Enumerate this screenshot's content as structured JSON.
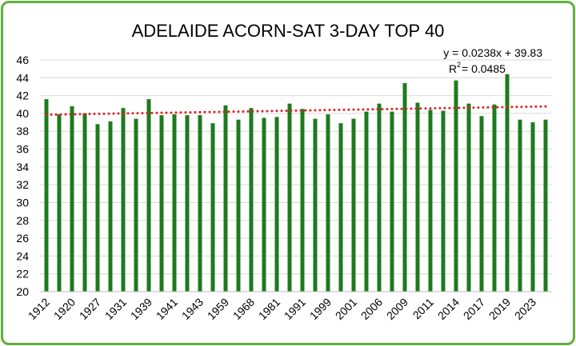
{
  "chart_data": {
    "type": "bar",
    "title": "ADELAIDE ACORN-SAT 3-DAY TOP 40",
    "xlabel": "",
    "ylabel": "",
    "ylim": [
      20,
      46
    ],
    "y_ticks": [
      20,
      22,
      24,
      26,
      28,
      30,
      32,
      34,
      36,
      38,
      40,
      42,
      44,
      46
    ],
    "x_tick_labels": [
      "1912",
      "1920",
      "1927",
      "1931",
      "1939",
      "1941",
      "1943",
      "1959",
      "1968",
      "1981",
      "1991",
      "1999",
      "2001",
      "2006",
      "2009",
      "2011",
      "2014",
      "2017",
      "2019",
      "2023"
    ],
    "values": [
      41.6,
      39.9,
      40.8,
      40.0,
      38.8,
      39.1,
      40.6,
      39.4,
      41.6,
      39.8,
      39.9,
      39.8,
      39.8,
      38.9,
      40.9,
      39.3,
      40.6,
      39.5,
      39.6,
      41.1,
      40.5,
      39.4,
      39.9,
      38.9,
      39.4,
      40.2,
      41.1,
      40.2,
      43.4,
      41.2,
      40.4,
      40.3,
      43.7,
      41.1,
      39.7,
      41.0,
      44.4,
      39.3,
      39.0,
      39.3
    ],
    "bar_color": "#1e7b1e",
    "trendline": {
      "type": "linear",
      "slope": 0.0238,
      "intercept": 39.83,
      "color": "#e02020",
      "style": "dotted",
      "equation": "y = 0.0238x + 39.83",
      "r2_prefix": "R",
      "r2_exp": "2",
      "r2_value": " = 0.0485"
    },
    "grid": true,
    "legend": "none"
  }
}
